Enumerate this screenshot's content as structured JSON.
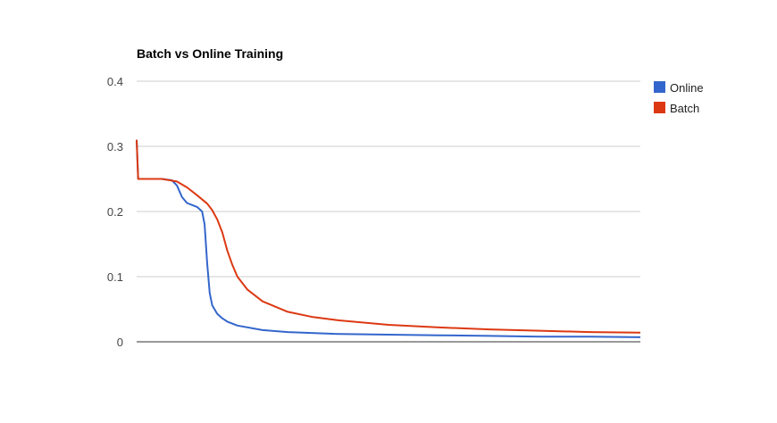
{
  "chart_data": {
    "type": "line",
    "title": "Batch vs Online Training",
    "xlabel": "",
    "ylabel": "",
    "ylim": [
      0,
      0.4
    ],
    "xlim": [
      0,
      100
    ],
    "yticks": [
      "0.4",
      "0.3",
      "0.2",
      "0.1",
      "0"
    ],
    "ytick_values": [
      0.4,
      0.3,
      0.2,
      0.1,
      0
    ],
    "grid": true,
    "legend_position": "right",
    "series": [
      {
        "name": "Online",
        "color": "#3366cc",
        "x": [
          0,
          0.3,
          1,
          5,
          7,
          8,
          9,
          10,
          11,
          12,
          13,
          13.5,
          14,
          14.5,
          15,
          16,
          17,
          18,
          20,
          25,
          30,
          40,
          50,
          60,
          70,
          80,
          90,
          100
        ],
        "y": [
          0.31,
          0.25,
          0.25,
          0.25,
          0.248,
          0.24,
          0.222,
          0.213,
          0.21,
          0.207,
          0.2,
          0.18,
          0.12,
          0.075,
          0.056,
          0.043,
          0.036,
          0.031,
          0.025,
          0.018,
          0.015,
          0.012,
          0.011,
          0.01,
          0.009,
          0.008,
          0.008,
          0.007
        ]
      },
      {
        "name": "Batch",
        "color": "#dc3912",
        "x": [
          0,
          0.3,
          1,
          5,
          8,
          10,
          12,
          14,
          15,
          16,
          17,
          18,
          19,
          20,
          22,
          25,
          30,
          35,
          40,
          50,
          60,
          70,
          80,
          90,
          100
        ],
        "y": [
          0.31,
          0.25,
          0.25,
          0.25,
          0.246,
          0.237,
          0.225,
          0.212,
          0.202,
          0.188,
          0.168,
          0.14,
          0.118,
          0.1,
          0.08,
          0.062,
          0.046,
          0.038,
          0.033,
          0.026,
          0.022,
          0.019,
          0.017,
          0.015,
          0.014
        ]
      }
    ]
  }
}
